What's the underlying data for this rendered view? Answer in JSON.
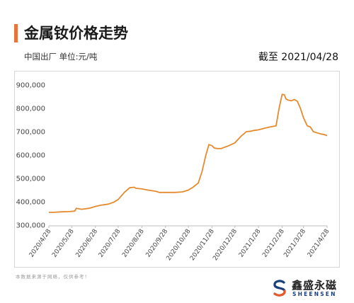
{
  "header": {
    "title": "金属钕价格走势",
    "unit_note": "中国出厂  单位:元/吨",
    "as_of": "截至 2021/04/28"
  },
  "footer": {
    "source_note": "本数据来源于网络，仅供参考！",
    "logo_cn": "鑫盛永磁",
    "logo_en": "SHEENSEN"
  },
  "colors": {
    "accent": "#e8743b",
    "line": "#e58a2e",
    "brand_blue": "#1a3f7a",
    "brand_red": "#e85a2a"
  },
  "chart_data": {
    "type": "line",
    "title": "金属钕价格走势",
    "ylabel": "",
    "xlabel": "",
    "ylim": [
      300000,
      900000
    ],
    "yticks": [
      300000,
      400000,
      500000,
      600000,
      700000,
      800000,
      900000
    ],
    "ytick_labels": [
      "300,000",
      "400,000",
      "500,000",
      "600,000",
      "700,000",
      "800,000",
      "900,000"
    ],
    "xtick_labels": [
      "2020/4/28",
      "2020/5/28",
      "2020/6/28",
      "2020/7/28",
      "2020/8/28",
      "2020/9/28",
      "2020/10/28",
      "2020/11/28",
      "2020/12/28",
      "2021/1/28",
      "2021/2/28",
      "2021/3/28",
      "2021/4/28"
    ],
    "grid": false,
    "series": [
      {
        "x": [
          "2020/4/28",
          "2020/5/5",
          "2020/5/15",
          "2020/5/25",
          "2020/6/1",
          "2020/6/3",
          "2020/6/6",
          "2020/6/10",
          "2020/6/20",
          "2020/6/28",
          "2020/7/5",
          "2020/7/15",
          "2020/7/22",
          "2020/7/28",
          "2020/8/5",
          "2020/8/12",
          "2020/8/18",
          "2020/8/20",
          "2020/8/28",
          "2020/9/5",
          "2020/9/15",
          "2020/9/20",
          "2020/9/28",
          "2020/10/10",
          "2020/10/20",
          "2020/10/28",
          "2020/11/3",
          "2020/11/10",
          "2020/11/15",
          "2020/11/20",
          "2020/11/24",
          "2020/11/28",
          "2020/12/1",
          "2020/12/5",
          "2020/12/10",
          "2020/12/20",
          "2020/12/28",
          "2021/1/5",
          "2021/1/12",
          "2021/1/18",
          "2021/1/22",
          "2021/1/28",
          "2021/2/5",
          "2021/2/12",
          "2021/2/20",
          "2021/2/24",
          "2021/2/28",
          "2021/3/3",
          "2021/3/5",
          "2021/3/8",
          "2021/3/12",
          "2021/3/16",
          "2021/3/20",
          "2021/3/24",
          "2021/3/28",
          "2021/4/2",
          "2021/4/6",
          "2021/4/10",
          "2021/4/15",
          "2021/4/20",
          "2021/4/24",
          "2021/4/28"
        ],
        "values": [
          355000,
          355000,
          357000,
          358000,
          360000,
          372000,
          370000,
          368000,
          372000,
          380000,
          385000,
          390000,
          398000,
          410000,
          440000,
          460000,
          462000,
          458000,
          455000,
          450000,
          445000,
          440000,
          440000,
          440000,
          442000,
          450000,
          462000,
          480000,
          530000,
          600000,
          645000,
          640000,
          630000,
          628000,
          628000,
          640000,
          652000,
          680000,
          700000,
          702000,
          705000,
          708000,
          715000,
          720000,
          725000,
          800000,
          860000,
          858000,
          840000,
          835000,
          832000,
          838000,
          830000,
          800000,
          760000,
          725000,
          720000,
          700000,
          695000,
          690000,
          688000,
          683000
        ]
      }
    ]
  }
}
